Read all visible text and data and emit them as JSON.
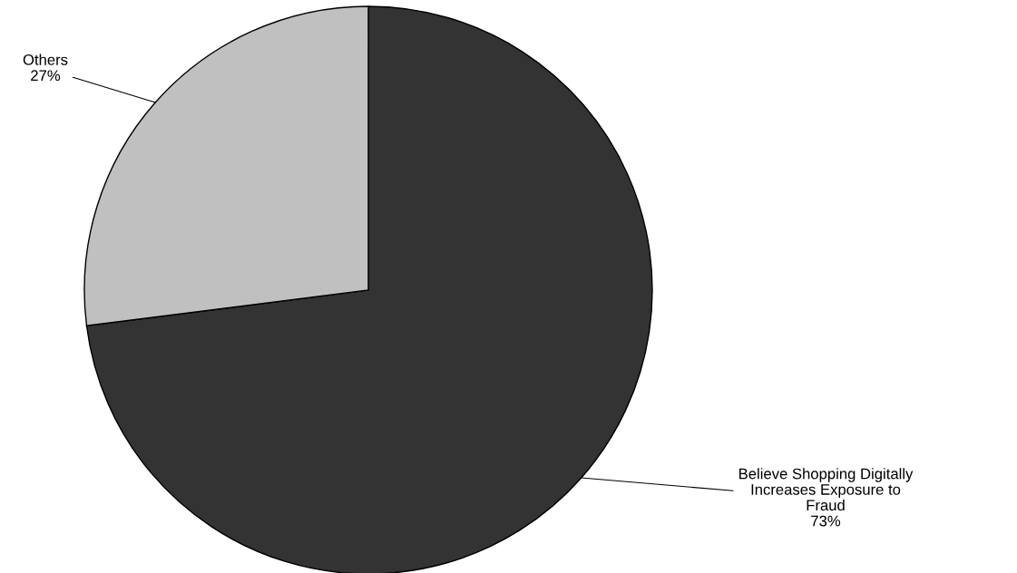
{
  "chart_data": {
    "type": "pie",
    "categories": [
      "Believe Shopping Digitally\nIncreases Exposure to\nFraud",
      "Others"
    ],
    "values": [
      73,
      27
    ],
    "value_labels": [
      "73%",
      "27%"
    ],
    "colors": [
      "#333333",
      "#c0c0c0"
    ]
  }
}
